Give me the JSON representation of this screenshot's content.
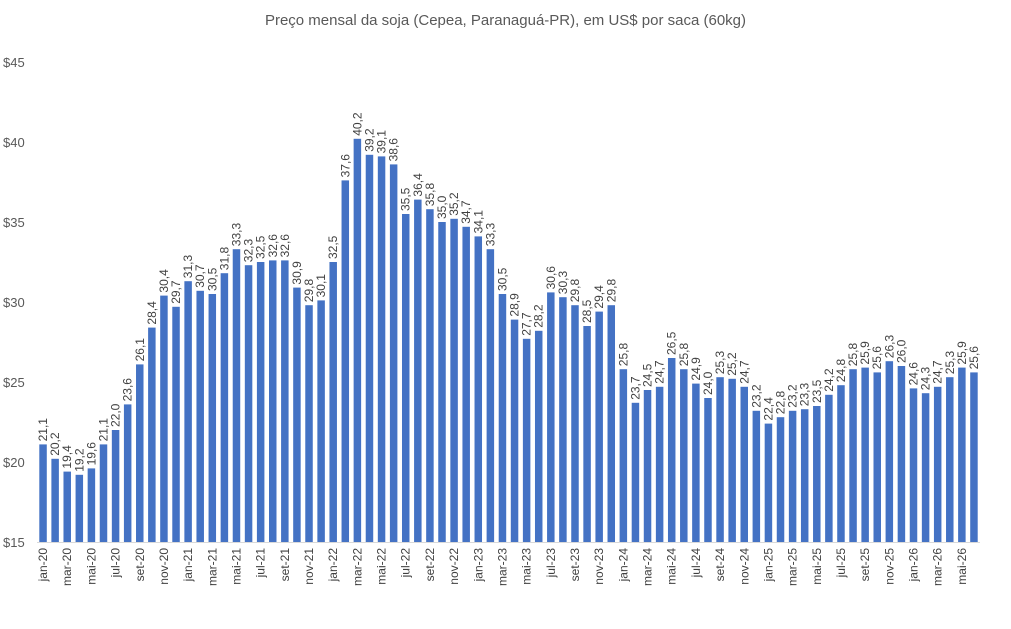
{
  "chart_data": {
    "type": "bar",
    "title": "Preço mensal da soja (Cepea, Paranaguá-PR), em US$ por saca (60kg)",
    "xlabel": "",
    "ylabel": "",
    "ylim": [
      15,
      45
    ],
    "y_ticks": [
      "$15",
      "$20",
      "$25",
      "$30",
      "$35",
      "$40",
      "$45"
    ],
    "grid": false,
    "legend": "none",
    "bar_color": "#4472C4",
    "categories": [
      "jan-20",
      "fev-20",
      "mar-20",
      "abr-20",
      "mai-20",
      "jun-20",
      "jul-20",
      "ago-20",
      "set-20",
      "out-20",
      "nov-20",
      "dez-20",
      "jan-21",
      "fev-21",
      "mar-21",
      "abr-21",
      "mai-21",
      "jun-21",
      "jul-21",
      "ago-21",
      "set-21",
      "out-21",
      "nov-21",
      "dez-21",
      "jan-22",
      "fev-22",
      "mar-22",
      "abr-22",
      "mai-22",
      "jun-22",
      "jul-22",
      "ago-22",
      "set-22",
      "out-22",
      "nov-22",
      "dez-22",
      "jan-23",
      "fev-23",
      "mar-23",
      "abr-23",
      "mai-23",
      "jun-23",
      "jul-23",
      "ago-23",
      "set-23",
      "out-23",
      "nov-23",
      "dez-23",
      "jan-24",
      "fev-24",
      "mar-24",
      "abr-24",
      "mai-24",
      "jun-24",
      "jul-24",
      "ago-24",
      "set-24",
      "out-24",
      "nov-24",
      "dez-24",
      "jan-25",
      "fev-25",
      "mar-25",
      "abr-25",
      "mai-25",
      "jun-25",
      "jul-25",
      "ago-25",
      "set-25",
      "out-25",
      "nov-25",
      "dez-25",
      "jan-26",
      "fev-26",
      "mar-26",
      "abr-26",
      "mai-26",
      "jun-26"
    ],
    "values": [
      21.1,
      20.2,
      19.4,
      19.2,
      19.6,
      21.1,
      22.0,
      23.6,
      26.1,
      28.4,
      30.4,
      29.7,
      31.3,
      30.7,
      30.5,
      31.8,
      33.3,
      32.3,
      32.5,
      32.6,
      32.6,
      30.9,
      29.8,
      30.1,
      32.5,
      37.6,
      40.2,
      39.2,
      39.1,
      38.6,
      35.5,
      36.4,
      35.8,
      35.0,
      35.2,
      34.7,
      34.1,
      33.3,
      30.5,
      28.9,
      27.7,
      28.2,
      30.6,
      30.3,
      29.8,
      28.5,
      29.4,
      29.8,
      25.8,
      23.7,
      24.5,
      24.7,
      26.5,
      25.8,
      24.9,
      24.0,
      25.3,
      25.2,
      24.7,
      23.2,
      22.4,
      22.8,
      23.2,
      23.3,
      23.5,
      24.2,
      24.8,
      25.8,
      25.9,
      25.6,
      26.3,
      26.0,
      24.6,
      24.3,
      24.7,
      25.3,
      25.9,
      25.6
    ],
    "value_labels": [
      "21,1",
      "20,2",
      "19,4",
      "19,2",
      "19,6",
      "21,1",
      "22,0",
      "23,6",
      "26,1",
      "28,4",
      "30,4",
      "29,7",
      "31,3",
      "30,7",
      "30,5",
      "31,8",
      "33,3",
      "32,3",
      "32,5",
      "32,6",
      "32,6",
      "30,9",
      "29,8",
      "30,1",
      "32,5",
      "37,6",
      "40,2",
      "39,2",
      "39,1",
      "38,6",
      "35,5",
      "36,4",
      "35,8",
      "35,0",
      "35,2",
      "34,7",
      "34,1",
      "33,3",
      "30,5",
      "28,9",
      "27,7",
      "28,2",
      "30,6",
      "30,3",
      "29,8",
      "28,5",
      "29,4",
      "29,8",
      "25,8",
      "23,7",
      "24,5",
      "24,7",
      "26,5",
      "25,8",
      "24,9",
      "24,0",
      "25,3",
      "25,2",
      "24,7",
      "23,2",
      "22,4",
      "22,8",
      "23,2",
      "23,3",
      "23,5",
      "24,2",
      "24,8",
      "25,8",
      "25,9",
      "25,6",
      "26,3",
      "26,0",
      "24,6",
      "24,3",
      "24,7",
      "25,3",
      "25,9",
      "25,6"
    ],
    "x_tick_labels_shown_every": 2
  }
}
